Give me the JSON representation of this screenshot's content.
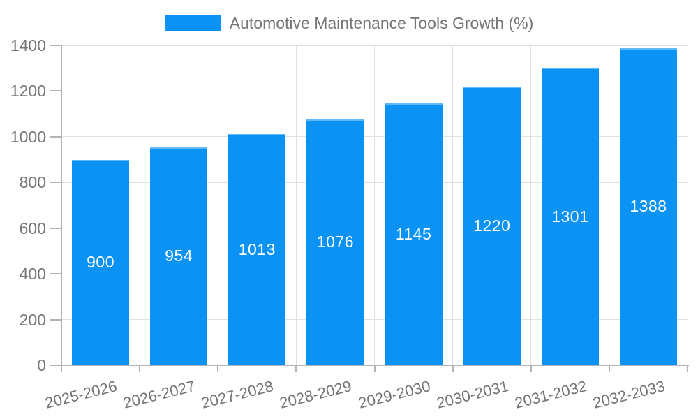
{
  "legend": {
    "label": "Automotive Maintenance Tools Growth (%)"
  },
  "chart_data": {
    "type": "bar",
    "title": "Automotive Maintenance Tools Growth (%)",
    "series_name": "Automotive Maintenance Tools Growth (%)",
    "categories": [
      "2025-2026",
      "2026-2027",
      "2027-2028",
      "2028-2029",
      "2029-2030",
      "2030-2031",
      "2031-2032",
      "2032-2033"
    ],
    "values": [
      900,
      954,
      1013,
      1076,
      1145,
      1220,
      1301,
      1388
    ],
    "xlabel": "",
    "ylabel": "",
    "ylim": [
      0,
      1400
    ],
    "ytick_step": 200,
    "yticks": [
      0,
      200,
      400,
      600,
      800,
      1000,
      1200,
      1400
    ],
    "grid": true,
    "legend_position": "top-center",
    "value_labels": "inside-center",
    "x_label_rotation_deg": -14,
    "colors": {
      "bar": "#0a93f5",
      "bar_top_highlight": "#7dbef8",
      "grid": "#e0e0e0",
      "axis": "#b3b3b3",
      "tick_label": "#757575",
      "value_label": "#ffffff",
      "background": "#ffffff"
    }
  }
}
